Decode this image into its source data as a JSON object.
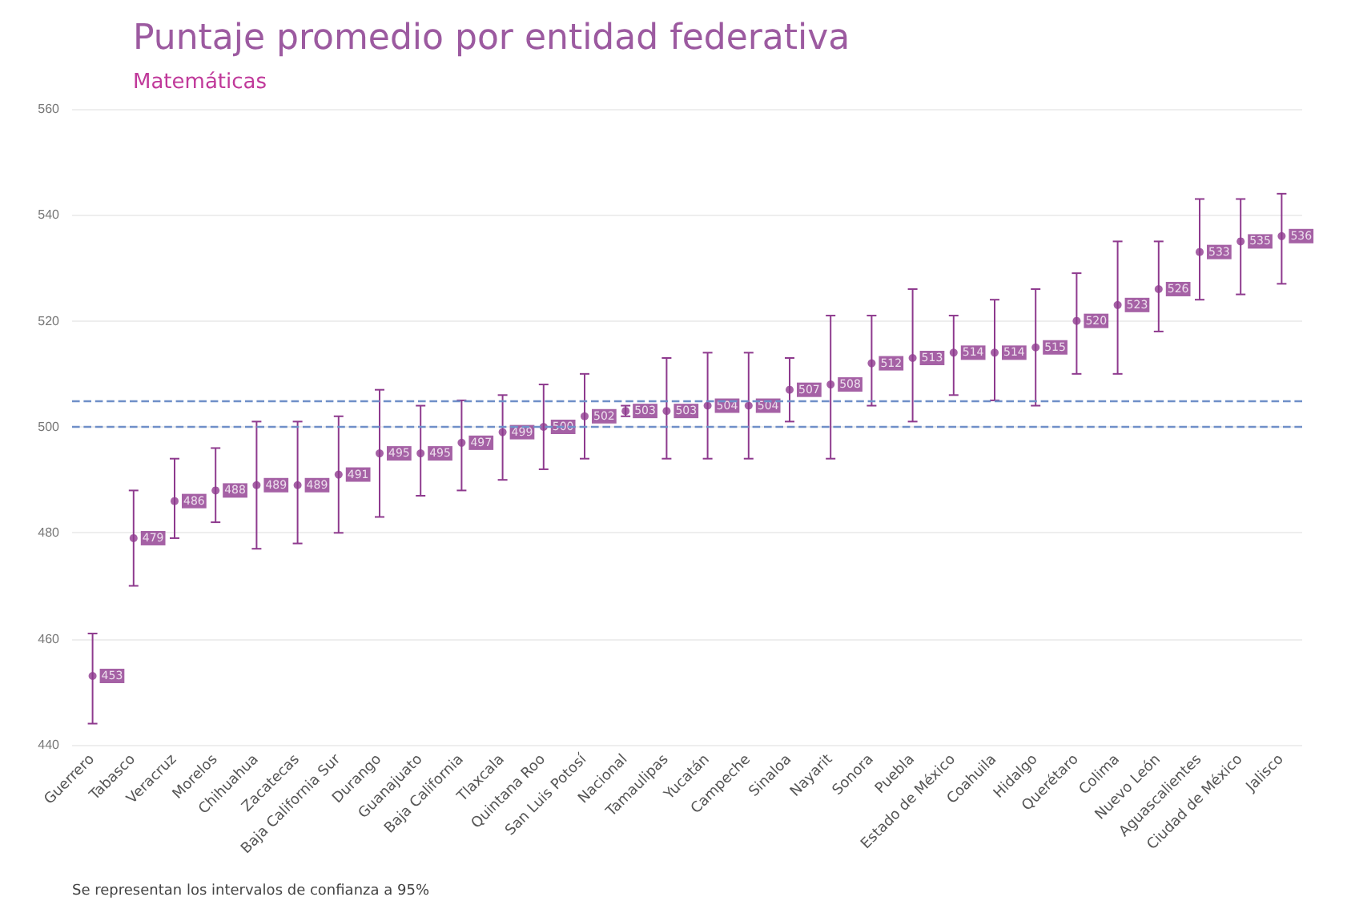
{
  "chart_data": {
    "type": "scatter",
    "title": "Puntaje promedio por entidad federativa",
    "subtitle": "Matemáticas",
    "annotations": [
      "Se representan los intervalos de confianza a 95%"
    ],
    "categories": [
      "Guerrero",
      "Tabasco",
      "Veracruz",
      "Morelos",
      "Chihuahua",
      "Zacatecas",
      "Baja California Sur",
      "Durango",
      "Guanajuato",
      "Baja California",
      "Tlaxcala",
      "Quintana Roo",
      "San Luis Potosí",
      "Nacional",
      "Tamaulipas",
      "Yucatán",
      "Campeche",
      "Sinaloa",
      "Nayarit",
      "Sonora",
      "Puebla",
      "Estado de México",
      "Coahuila",
      "Hidalgo",
      "Querétaro",
      "Colima",
      "Nuevo León",
      "Aguascalientes",
      "Ciudad de México",
      "Jalisco"
    ],
    "series": [
      {
        "color": "#8e3a8e",
        "values": [
          453,
          479,
          486,
          488,
          489,
          489,
          491,
          495,
          495,
          497,
          499,
          500,
          502,
          503,
          503,
          504,
          504,
          507,
          508,
          512,
          513,
          514,
          514,
          515,
          520,
          523,
          526,
          533,
          535,
          536
        ],
        "errors": [
          [
            444,
            461
          ],
          [
            470,
            488
          ],
          [
            479,
            494
          ],
          [
            482,
            496
          ],
          [
            477,
            501
          ],
          [
            478,
            501
          ],
          [
            480,
            502
          ],
          [
            483,
            507
          ],
          [
            487,
            504
          ],
          [
            488,
            505
          ],
          [
            490,
            506
          ],
          [
            492,
            508
          ],
          [
            494,
            510
          ],
          [
            502,
            504
          ],
          [
            494,
            513
          ],
          [
            494,
            514
          ],
          [
            494,
            514
          ],
          [
            501,
            513
          ],
          [
            494,
            521
          ],
          [
            504,
            521
          ],
          [
            501,
            526
          ],
          [
            506,
            521
          ],
          [
            505,
            524
          ],
          [
            504,
            526
          ],
          [
            510,
            529
          ],
          [
            510,
            535
          ],
          [
            518,
            535
          ],
          [
            524,
            543
          ],
          [
            525,
            543
          ],
          [
            527,
            544
          ]
        ]
      }
    ],
    "ylim": [
      440,
      560
    ],
    "yticks": [
      440,
      460,
      480,
      500,
      520,
      540,
      560
    ],
    "ref_lines": [
      {
        "axis": "y",
        "value": 500,
        "color": "#6f8fc8",
        "line_style": "dashed"
      },
      {
        "axis": "y",
        "value": 505,
        "color": "#6f8fc8",
        "line_style": "dashed"
      }
    ],
    "data_labels": true,
    "grid": "y",
    "marker": "circle"
  }
}
